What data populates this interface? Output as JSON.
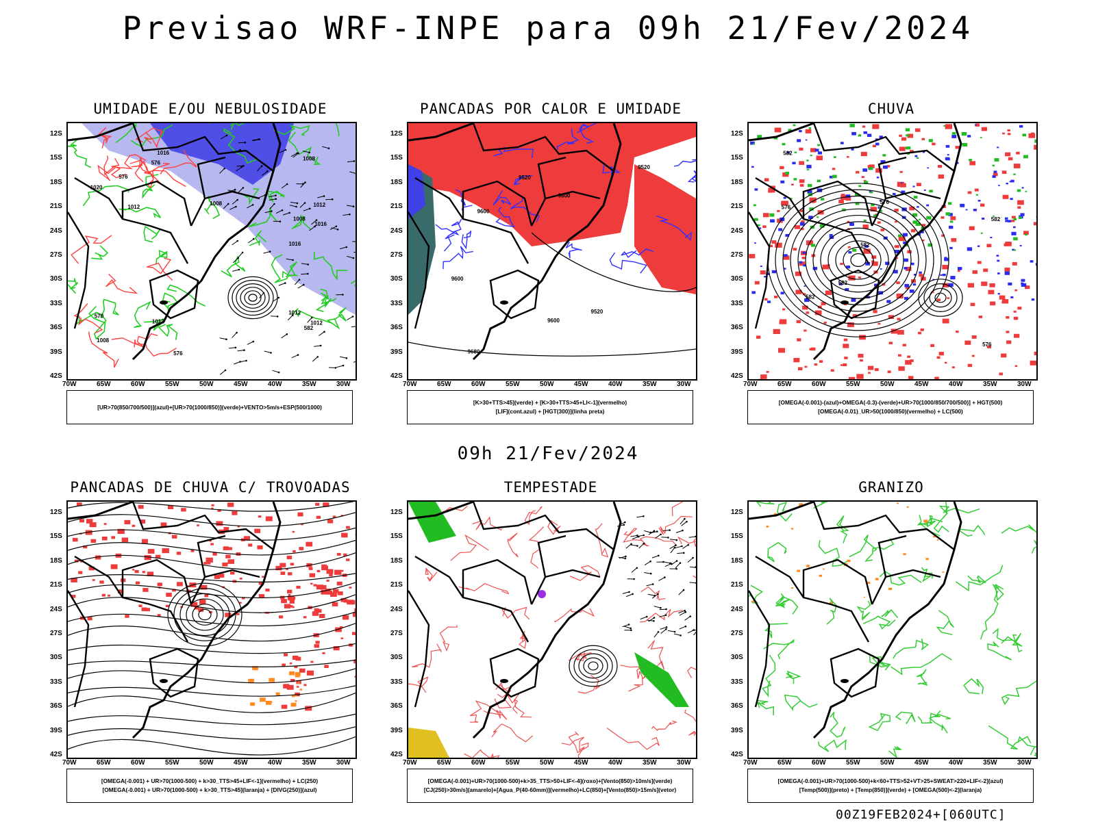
{
  "header": {
    "title": "Previsao WRF-INPE  para 09h 21/Fev/2024"
  },
  "mid_date": "09h 21/Fev/2024",
  "footer": "00Z19FEB2024+[060UTC]",
  "axes": {
    "lat_labels": [
      "12S",
      "15S",
      "18S",
      "21S",
      "24S",
      "27S",
      "30S",
      "33S",
      "36S",
      "39S",
      "42S"
    ],
    "lon_labels": [
      "70W",
      "65W",
      "60W",
      "55W",
      "50W",
      "45W",
      "40W",
      "35W",
      "30W"
    ]
  },
  "panels": [
    {
      "title": "UMIDADE E/OU NEBULOSIDADE",
      "legend": [
        "[UR>70(850/700/500)](azul)+[UR>70(1000/850)](verde)+VENTO>5m/s+ESP(500/1000)"
      ],
      "contour_labels": [
        "1012",
        "1012",
        "1012",
        "1008",
        "1008",
        "1016",
        "1008",
        "1012",
        "1008",
        "1012",
        "1016",
        "1020",
        "1016",
        "576",
        "570",
        "576",
        "582",
        "576"
      ]
    },
    {
      "title": "PANCADAS POR CALOR E UMIDADE",
      "legend": [
        "[K>30+TTS>45](verde) + [K>30+TTS>45+LI<-1](vermelho)",
        "[LIF](cont.azul) + [HGT(300)](linha preta)"
      ],
      "contour_labels": [
        "9600",
        "9600",
        "9600",
        "9600",
        "9520",
        "9520",
        "9520",
        "9680"
      ]
    },
    {
      "title": "CHUVA",
      "legend": [
        "[OMEGA(-0.001)-(azul)+OMEGA(-0.3)-(verde)+UR>70(1000/850/700/500)] + HGT(500)",
        "[OMEGA(-0.01)_UR>50(1000/850)(vermelho) + LC(500)"
      ],
      "contour_labels": [
        "582",
        "576",
        "582",
        "582",
        "582",
        "576",
        "576",
        "582"
      ]
    },
    {
      "title": "PANCADAS DE CHUVA C/ TROVOADAS",
      "legend": [
        "[OMEGA(-0.001) + UR>70(1000-500) + k>30_TTS>45+LIF<-1](vermelho) + LC(250)",
        "[OMEGA(-0.001) + UR>70(1000-500) + k>30_TTS>45](laranja) + [DIVG(250)](azul)"
      ],
      "contour_labels": []
    },
    {
      "title": "TEMPESTADE",
      "legend": [
        "[OMEGA(-0.001)+UR>70(1000-500)+k>35_TTS>50+LIF<-4](roxo)+[Vento(850)>10m/s](verde)",
        "[CJ(250)>30m/s](amarelo)+[Agua_P(40-60mm)](vermelho)+LC(850)+[Vento(850)>15m/s](vetor)"
      ],
      "contour_labels": []
    },
    {
      "title": "GRANIZO",
      "legend": [
        "[OMEGA(-0.001)+UR>70(1000-500)+k<60+TTS>52+VT>25+SWEAT>220+LIF<-2](azul)",
        "[Temp(500)](preto) + [Temp(850)](verde) + [OMEGA(500)<-2](laranja)"
      ],
      "contour_labels": []
    }
  ]
}
